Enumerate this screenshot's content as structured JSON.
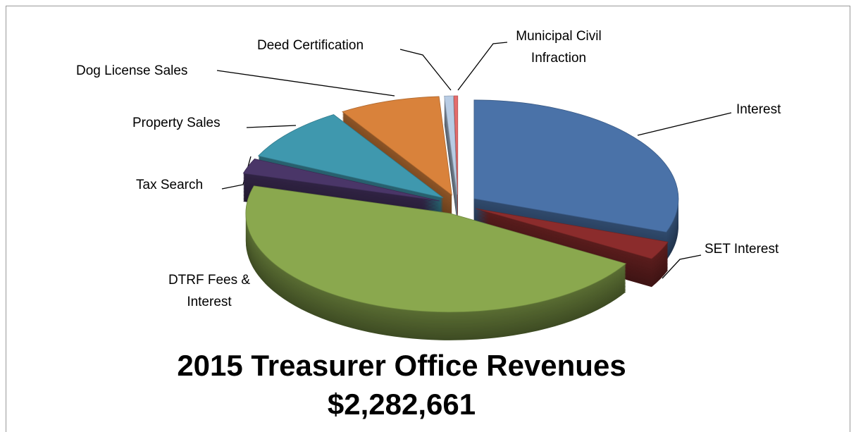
{
  "chart_data": {
    "type": "pie3d",
    "title": "2015 Treasurer Office Revenues",
    "subtitle": "$2,282,661",
    "categories": [
      "Interest",
      "SET Interest",
      "DTRF Fees & Interest",
      "Tax Search",
      "Property Sales",
      "Dog License Sales",
      "Deed Certification",
      "Municipal Civil Infraction"
    ],
    "values": [
      30.5,
      3,
      46,
      2.5,
      9,
      8,
      0.7,
      0.3
    ],
    "colors": [
      "#4a72a8",
      "#8b2c2c",
      "#8aa84e",
      "#4a3668",
      "#3f98ae",
      "#d9823b",
      "#b8cce4",
      "#e46c6c"
    ]
  }
}
